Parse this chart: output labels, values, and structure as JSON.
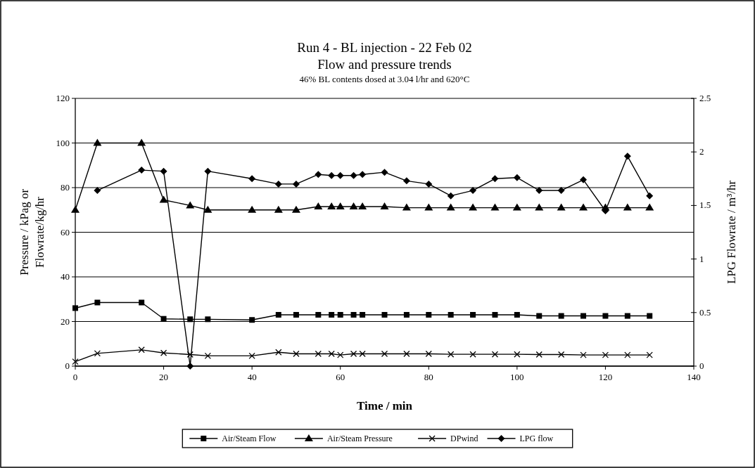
{
  "chart_data": {
    "type": "line",
    "title": "Run 4 - BL injection - 22 Feb 02\nFlow and pressure trends",
    "subtitle": "46% BL contents dosed at 3.04 l/hr and 620°C",
    "xlabel": "Time / min",
    "ylabel": "Pressure / kPag or\nFlowrate/kg/hr",
    "y2label": "LPG Flowrate / m³/hr",
    "x": [
      0,
      5,
      15,
      20,
      26,
      30,
      40,
      46,
      50,
      55,
      58,
      60,
      63,
      65,
      70,
      75,
      80,
      85,
      90,
      95,
      100,
      105,
      110,
      115,
      120,
      125,
      130
    ],
    "series": [
      {
        "name": "Air/Steam Flow",
        "color": "#000000",
        "marker": "square",
        "values": [
          26,
          28.5,
          28.5,
          21.2,
          21,
          21,
          20.7,
          23,
          23,
          23,
          23,
          23,
          23,
          23,
          23,
          23,
          23,
          23,
          23,
          23,
          23,
          22.5,
          22.5,
          22.5,
          22.5,
          22.5,
          22.5
        ]
      },
      {
        "name": "Air/Steam Pressure",
        "color": "#000000",
        "marker": "triangle",
        "values": [
          70,
          100,
          100,
          74.5,
          72,
          70,
          70,
          70,
          70,
          71.5,
          71.5,
          71.5,
          71.5,
          71.5,
          71.5,
          71,
          71,
          71,
          71,
          71,
          71,
          71,
          71,
          71,
          71,
          71,
          71
        ]
      },
      {
        "name": "DPwind",
        "color": "#000000",
        "marker": "cross",
        "values": [
          2,
          5.7,
          7.3,
          5.9,
          5.2,
          4.6,
          4.6,
          6.2,
          5.5,
          5.5,
          5.5,
          5,
          5.5,
          5.5,
          5.5,
          5.5,
          5.5,
          5.3,
          5.3,
          5.3,
          5.3,
          5.2,
          5.2,
          5,
          5,
          5,
          5
        ]
      },
      {
        "name": "LPG flow",
        "color": "#000000",
        "marker": "diamond",
        "axis": "y2",
        "values": [
          null,
          1.64,
          1.83,
          1.82,
          0,
          1.82,
          1.75,
          1.7,
          1.7,
          1.79,
          1.78,
          1.78,
          1.78,
          1.79,
          1.81,
          1.73,
          1.7,
          1.59,
          1.64,
          1.75,
          1.76,
          1.64,
          1.64,
          1.74,
          1.45,
          1.96,
          1.59
        ]
      }
    ],
    "xlim": [
      0,
      140
    ],
    "xticks": [
      0,
      20,
      40,
      60,
      80,
      100,
      120,
      140
    ],
    "ylim": [
      0,
      120
    ],
    "yticks": [
      0,
      20,
      40,
      60,
      80,
      100,
      120
    ],
    "y2lim": [
      0,
      2.5
    ],
    "y2ticks": [
      0,
      0.5,
      1,
      1.5,
      2,
      2.5
    ],
    "grid": "y",
    "legend": "bottom",
    "line_style": "solid"
  }
}
